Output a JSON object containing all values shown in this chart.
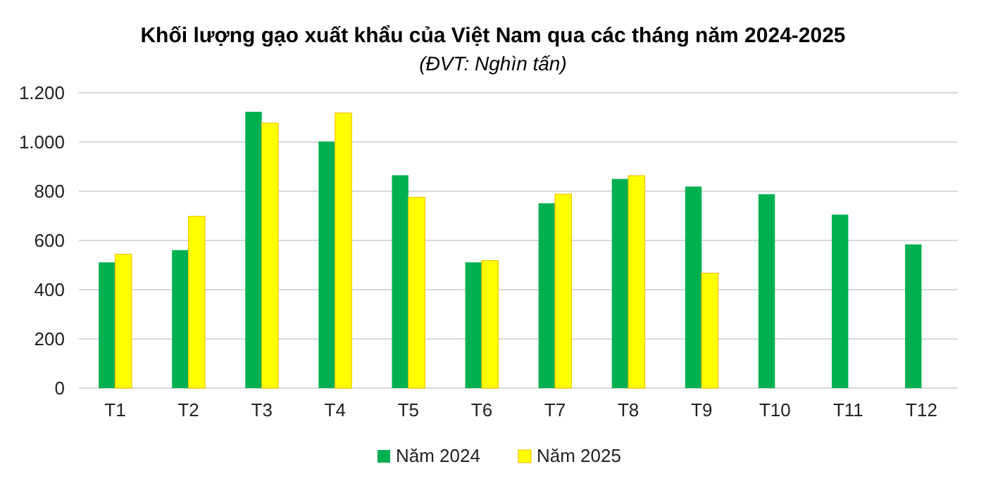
{
  "chart_data": {
    "type": "bar",
    "title": "Khối lượng gạo xuất khẩu của Việt Nam qua các tháng năm 2024-2025",
    "subtitle": "(ĐVT:  Nghìn tấn)",
    "categories": [
      "T1",
      "T2",
      "T3",
      "T4",
      "T5",
      "T6",
      "T7",
      "T8",
      "T9",
      "T10",
      "T11",
      "T12"
    ],
    "series": [
      {
        "name": "Năm 2024",
        "color": "#00b050",
        "values": [
          511,
          561,
          1123,
          1002,
          865,
          511,
          751,
          850,
          819,
          788,
          705,
          584
        ]
      },
      {
        "name": "Năm 2025",
        "color": "#ffff00",
        "values": [
          544,
          698,
          1077,
          1118,
          775,
          518,
          788,
          863,
          467,
          null,
          null,
          null
        ]
      }
    ],
    "ylim": [
      0,
      1200
    ],
    "yticks": [
      0,
      200,
      400,
      600,
      800,
      {
        "value": 1000,
        "label": "1.000"
      },
      {
        "value": 1200,
        "label": "1.200"
      }
    ],
    "grid": "y",
    "legend": "bottom"
  }
}
